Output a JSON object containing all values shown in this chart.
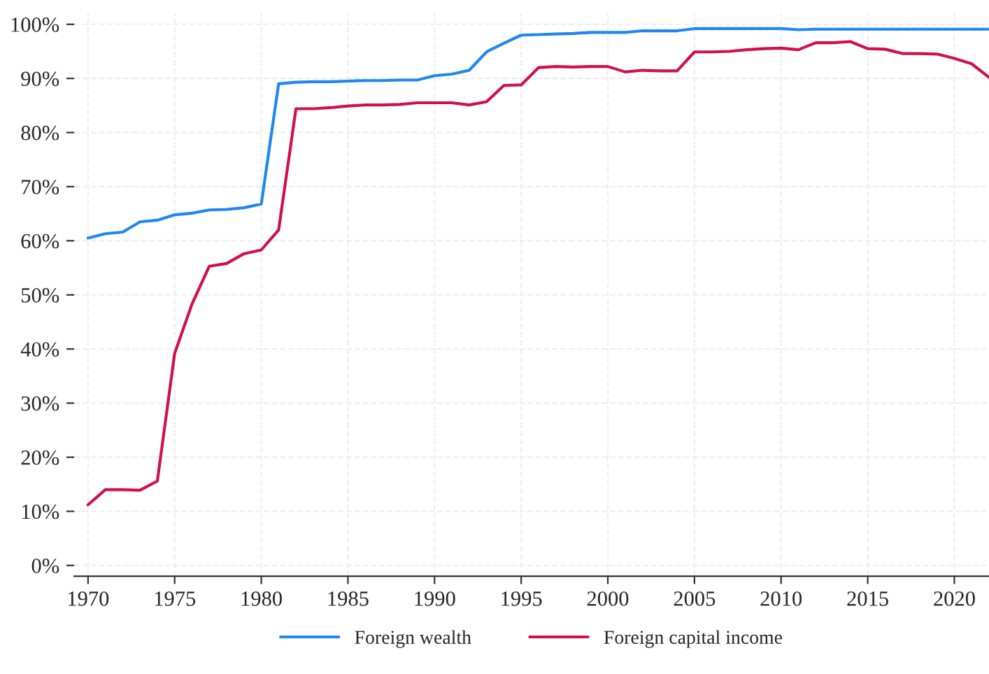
{
  "chart_data": {
    "type": "line",
    "x": [
      1970,
      1971,
      1972,
      1973,
      1974,
      1975,
      1976,
      1977,
      1978,
      1979,
      1980,
      1981,
      1982,
      1983,
      1984,
      1985,
      1986,
      1987,
      1988,
      1989,
      1990,
      1991,
      1992,
      1993,
      1994,
      1995,
      1996,
      1997,
      1998,
      1999,
      2000,
      2001,
      2002,
      2003,
      2004,
      2005,
      2006,
      2007,
      2008,
      2009,
      2010,
      2011,
      2012,
      2013,
      2014,
      2015,
      2016,
      2017,
      2018,
      2019,
      2020,
      2021,
      2022
    ],
    "series": [
      {
        "name": "Foreign wealth",
        "color": "#1e88f0",
        "values": [
          60.5,
          61.3,
          61.6,
          63.5,
          63.8,
          64.8,
          65.1,
          65.7,
          65.8,
          66.1,
          66.8,
          89.0,
          89.3,
          89.4,
          89.4,
          89.5,
          89.6,
          89.6,
          89.7,
          89.7,
          90.5,
          90.8,
          91.5,
          94.9,
          96.5,
          98.0,
          98.1,
          98.2,
          98.3,
          98.5,
          98.5,
          98.5,
          98.8,
          98.8,
          98.8,
          99.2,
          99.2,
          99.2,
          99.2,
          99.2,
          99.2,
          99.0,
          99.1,
          99.1,
          99.1,
          99.1,
          99.1,
          99.1,
          99.1,
          99.1,
          99.1,
          99.1,
          99.1
        ]
      },
      {
        "name": "Foreign capital income",
        "color": "#d0104c",
        "values": [
          11.2,
          14.0,
          14.0,
          13.9,
          15.6,
          39.2,
          48.3,
          55.3,
          55.8,
          57.6,
          58.3,
          62.0,
          84.4,
          84.4,
          84.6,
          84.9,
          85.1,
          85.1,
          85.2,
          85.5,
          85.5,
          85.5,
          85.1,
          85.7,
          88.7,
          88.8,
          92.0,
          92.2,
          92.1,
          92.2,
          92.2,
          91.2,
          91.5,
          91.4,
          91.4,
          94.9,
          94.9,
          95.0,
          95.3,
          95.5,
          95.6,
          95.3,
          96.6,
          96.6,
          96.8,
          95.5,
          95.4,
          94.6,
          94.6,
          94.5,
          93.7,
          92.7,
          90.2
        ]
      }
    ],
    "xlim": [
      1969.2,
      2022
    ],
    "xticks": [
      1970,
      1975,
      1980,
      1985,
      1990,
      1995,
      2000,
      2005,
      2010,
      2015,
      2020
    ],
    "ylim": [
      -2,
      102
    ],
    "yticks": [
      {
        "value": 0,
        "label": "0%"
      },
      {
        "value": 10,
        "label": "10%"
      },
      {
        "value": 20,
        "label": "20%"
      },
      {
        "value": 30,
        "label": "30%"
      },
      {
        "value": 40,
        "label": "40%"
      },
      {
        "value": 50,
        "label": "50%"
      },
      {
        "value": 60,
        "label": "60%"
      },
      {
        "value": 70,
        "label": "70%"
      },
      {
        "value": 80,
        "label": "80%"
      },
      {
        "value": 90,
        "label": "90%"
      },
      {
        "value": 100,
        "label": "100%"
      }
    ],
    "grid": true,
    "legend": "bottom",
    "line_style": "solid"
  }
}
